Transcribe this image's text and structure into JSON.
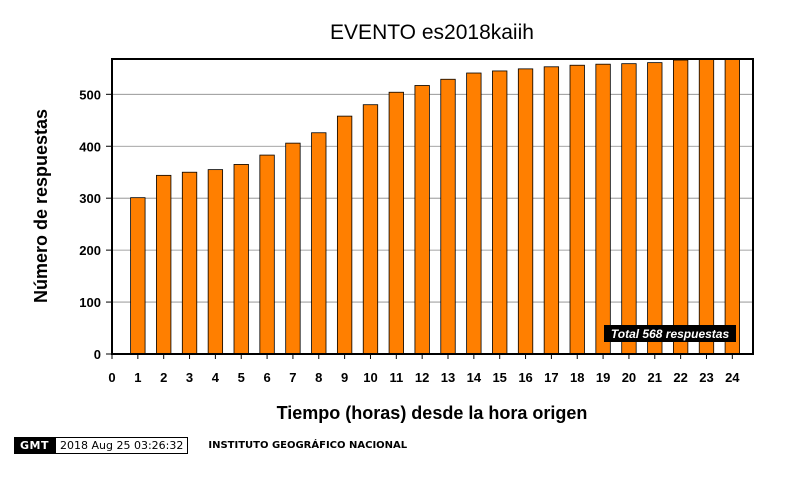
{
  "chart_data": {
    "type": "bar",
    "title": "EVENTO es2018kaiih",
    "xlabel": "Tiempo (horas) desde la hora origen",
    "ylabel": "Número de respuestas",
    "x_ticks": [
      "0",
      "1",
      "2",
      "3",
      "4",
      "5",
      "6",
      "7",
      "8",
      "9",
      "10",
      "11",
      "12",
      "13",
      "14",
      "15",
      "16",
      "17",
      "18",
      "19",
      "20",
      "21",
      "22",
      "23",
      "24"
    ],
    "y_ticks": [
      "0",
      "100",
      "200",
      "300",
      "400",
      "500"
    ],
    "xlim": [
      0,
      24.8
    ],
    "ylim": [
      0,
      568
    ],
    "categories": [
      1,
      2,
      3,
      4,
      5,
      6,
      7,
      8,
      9,
      10,
      11,
      12,
      13,
      14,
      15,
      16,
      17,
      18,
      19,
      20,
      21,
      22,
      23,
      24
    ],
    "values": [
      301,
      344,
      350,
      355,
      365,
      383,
      406,
      426,
      458,
      480,
      504,
      517,
      529,
      541,
      545,
      549,
      553,
      556,
      558,
      559,
      561,
      566,
      568,
      568
    ],
    "annotation": "Total 568 respuestas",
    "bar_color": "#ff7f00",
    "grid": "horizontal"
  },
  "footer": {
    "logo": "GMT",
    "timestamp": "2018 Aug 25 03:26:32",
    "institute": "INSTITUTO GEOGRÁFICO NACIONAL"
  }
}
